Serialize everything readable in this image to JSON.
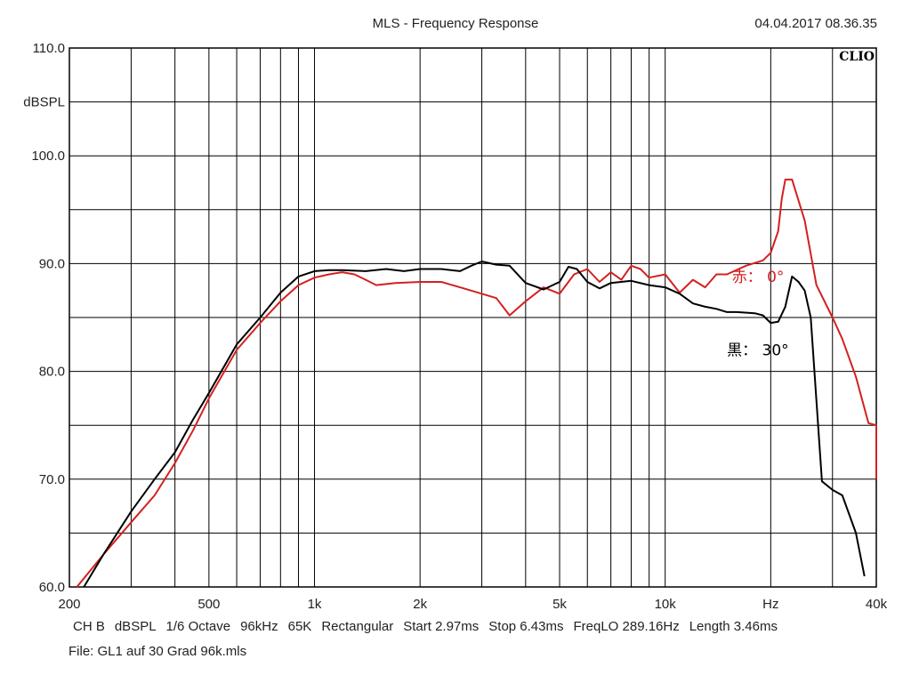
{
  "header": {
    "title": "MLS - Frequency Response",
    "timestamp": "04.04.2017 08.36.35",
    "brand": "CLIO"
  },
  "footer": {
    "settings": [
      "CH B",
      "dBSPL",
      "1/6 Octave",
      "96kHz",
      "65K",
      "Rectangular",
      "Start 2.97ms",
      "Stop 6.43ms",
      "FreqLO 289.16Hz",
      "Length 3.46ms"
    ],
    "file": "File: GL1 auf 30 Grad 96k.mls"
  },
  "chart_data": {
    "type": "line",
    "title": "MLS - Frequency Response",
    "ylabel": "dBSPL",
    "xlabel": "Hz",
    "x_scale": "log",
    "xlim": [
      200,
      40000
    ],
    "ylim": [
      60,
      110
    ],
    "grid": true,
    "x_gridlines": [
      300,
      400,
      500,
      600,
      700,
      800,
      900,
      1000,
      2000,
      3000,
      4000,
      5000,
      6000,
      7000,
      8000,
      9000,
      10000,
      20000,
      30000
    ],
    "y_gridlines": [
      65,
      70,
      75,
      80,
      85,
      90,
      95,
      100,
      105
    ],
    "x_ticks": [
      {
        "value": 200,
        "label": "200"
      },
      {
        "value": 500,
        "label": "500"
      },
      {
        "value": 1000,
        "label": "1k"
      },
      {
        "value": 2000,
        "label": "2k"
      },
      {
        "value": 5000,
        "label": "5k"
      },
      {
        "value": 10000,
        "label": "10k"
      },
      {
        "value": 20000,
        "label": "Hz"
      },
      {
        "value": 40000,
        "label": "40k"
      }
    ],
    "y_ticks": [
      {
        "value": 110,
        "label": "110.0"
      },
      {
        "value": 105,
        "label": "dBSPL"
      },
      {
        "value": 100,
        "label": "100.0"
      },
      {
        "value": 90,
        "label": "90.0"
      },
      {
        "value": 80,
        "label": "80.0"
      },
      {
        "value": 70,
        "label": "70.0"
      },
      {
        "value": 60,
        "label": "60.0"
      }
    ],
    "series": [
      {
        "name": "赤： 0°",
        "color": "#d42020",
        "label_at": [
          15500,
          88.3
        ],
        "x": [
          210,
          250,
          300,
          350,
          400,
          450,
          500,
          600,
          700,
          800,
          900,
          1000,
          1100,
          1200,
          1300,
          1400,
          1500,
          1700,
          2000,
          2300,
          2600,
          3000,
          3300,
          3600,
          4000,
          4500,
          5000,
          5500,
          6000,
          6500,
          7000,
          7500,
          8000,
          8500,
          9000,
          10000,
          11000,
          12000,
          13000,
          14000,
          15000,
          17000,
          19000,
          20000,
          21000,
          21500,
          22000,
          23000,
          25000,
          27000,
          30000,
          32000,
          35000,
          38000,
          40000
        ],
        "y": [
          60,
          63,
          66,
          68.5,
          71.5,
          74.5,
          77.5,
          82,
          84.5,
          86.5,
          88,
          88.7,
          89,
          89.2,
          89,
          88.5,
          88,
          88.2,
          88.3,
          88.3,
          87.8,
          87.2,
          86.8,
          85.2,
          86.5,
          87.8,
          87.2,
          89,
          89.5,
          88.3,
          89.2,
          88.5,
          89.8,
          89.5,
          88.7,
          89,
          87.3,
          88.5,
          87.8,
          89,
          89,
          89.8,
          90.3,
          91,
          93,
          96,
          97.8,
          97.8,
          94,
          88,
          85,
          83,
          79.5,
          75.2,
          75
        ],
        "tail_x": [
          40000,
          41000
        ],
        "tail_y": [
          75,
          70
        ]
      },
      {
        "name": "黒： 30°",
        "color": "#000000",
        "label_at": [
          15000,
          81.5
        ],
        "x": [
          220,
          250,
          300,
          350,
          400,
          450,
          500,
          600,
          700,
          800,
          900,
          1000,
          1100,
          1200,
          1400,
          1600,
          1800,
          2000,
          2300,
          2600,
          2800,
          3000,
          3300,
          3600,
          4000,
          4500,
          5000,
          5300,
          5600,
          6000,
          6500,
          7000,
          8000,
          9000,
          10000,
          11000,
          12000,
          13000,
          14000,
          15000,
          16000,
          18000,
          19000,
          20000,
          21000,
          22000,
          23000,
          24000,
          25000,
          26000,
          28000,
          30000,
          32000,
          35000,
          37000
        ],
        "y": [
          60,
          63,
          67,
          70,
          72.5,
          75.5,
          78,
          82.5,
          85,
          87.3,
          88.8,
          89.3,
          89.4,
          89.4,
          89.3,
          89.5,
          89.3,
          89.5,
          89.5,
          89.3,
          89.8,
          90.2,
          89.9,
          89.8,
          88.2,
          87.6,
          88.3,
          89.7,
          89.5,
          88.3,
          87.7,
          88.2,
          88.4,
          88,
          87.8,
          87.2,
          86.3,
          86,
          85.8,
          85.5,
          85.5,
          85.4,
          85.2,
          84.5,
          84.6,
          86,
          88.8,
          88.3,
          87.5,
          85,
          69.8,
          69,
          68.5,
          65,
          61
        ]
      }
    ]
  }
}
